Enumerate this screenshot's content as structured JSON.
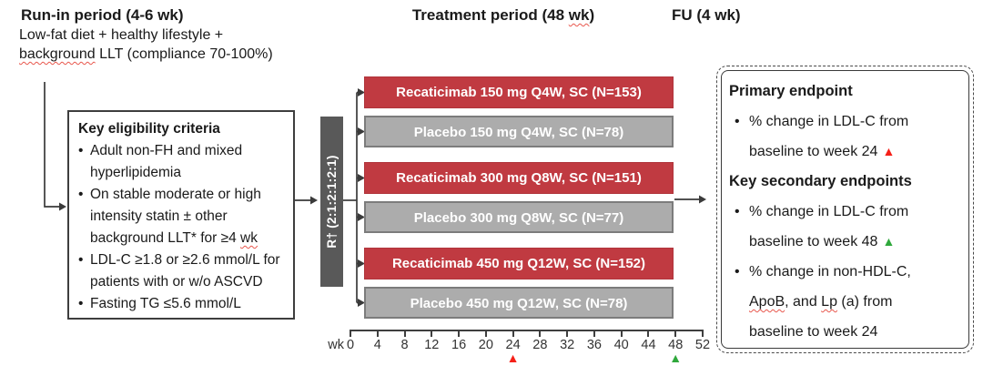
{
  "colors": {
    "active_bar": "#c03a41",
    "active_border": "#b0343b",
    "placebo_bar": "#acacac",
    "placebo_border": "#7c7c7c",
    "rand_block": "#595959",
    "connector": "#3a3a3a",
    "marker_red": "#f52018",
    "marker_green": "#2fa83c",
    "squiggle": "#e8574d"
  },
  "run_in": {
    "title": "Run-in period (4-6 wk)",
    "description_lines": [
      "Low-fat diet + healthy lifestyle +",
      "background LLT (compliance 70-100%)"
    ]
  },
  "period_headers": {
    "treatment": "Treatment period (48 wk)",
    "follow_up": "FU (4 wk)"
  },
  "eligibility": {
    "title": "Key eligibility criteria",
    "items": [
      "Adult non-FH and mixed hyperlipidemia",
      "On stable moderate or high intensity statin ± other background LLT* for ≥4 wk",
      "LDL-C ≥1.8 or ≥2.6 mmol/L for patients with or w/o ASCVD",
      "Fasting TG ≤5.6 mmol/L"
    ]
  },
  "randomization": {
    "label": "R† (2:1:2:1:2:1)"
  },
  "arms": [
    {
      "label": "Recaticimab 150 mg Q4W, SC (N=153)",
      "type": "active"
    },
    {
      "label": "Placebo 150 mg Q4W, SC (N=78)",
      "type": "placebo"
    },
    {
      "label": "Recaticimab 300 mg Q8W, SC (N=151)",
      "type": "active"
    },
    {
      "label": "Placebo 300 mg Q8W, SC (N=77)",
      "type": "placebo"
    },
    {
      "label": "Recaticimab 450 mg Q12W, SC (N=152)",
      "type": "active"
    },
    {
      "label": "Placebo 450 mg Q12W, SC (N=78)",
      "type": "placebo"
    }
  ],
  "timeline": {
    "axis_label": "wk",
    "ticks": [
      0,
      4,
      8,
      12,
      16,
      20,
      24,
      28,
      32,
      36,
      40,
      44,
      48,
      52
    ],
    "markers": [
      {
        "week": 24,
        "color": "red"
      },
      {
        "week": 48,
        "color": "green"
      }
    ]
  },
  "endpoints": {
    "sections": [
      {
        "title": "Primary endpoint",
        "items": [
          {
            "text": "% change in LDL-C from baseline to week 24",
            "marker": "red"
          }
        ]
      },
      {
        "title": "Key secondary endpoints",
        "items": [
          {
            "text": "% change in LDL-C from baseline to week 48",
            "marker": "green"
          },
          {
            "text": "% change in non-HDL-C, ApoB, and Lp (a) from baseline to week 24",
            "marker": null
          }
        ]
      }
    ]
  },
  "spellcheck_marks": {
    "period_headers.treatment": [
      "wk"
    ],
    "run_in.description_lines.1": [
      "background"
    ],
    "eligibility.items.1": [
      "wk"
    ],
    "endpoints.sections.1.items.1.text": [
      "ApoB",
      "Lp"
    ]
  }
}
